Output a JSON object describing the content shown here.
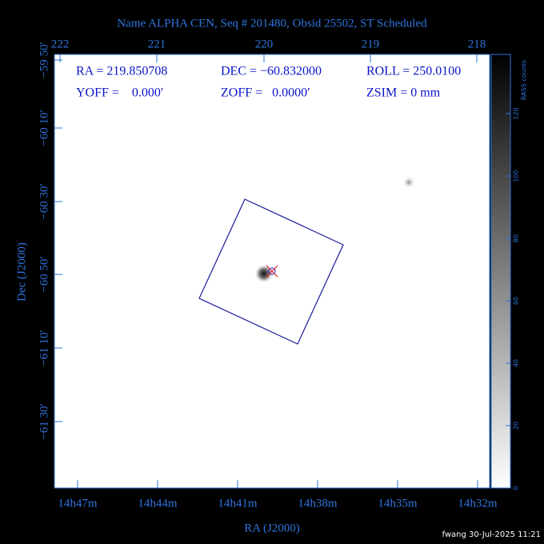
{
  "title": "Name ALPHA CEN, Seq # 201480, Obsid 25502, ST Scheduled",
  "info": {
    "row1": [
      "RA = 219.850708",
      "DEC = −60.832000",
      "ROLL = 250.0100"
    ],
    "row2": [
      "YOFF =    0.000′",
      "ZOFF =   0.0000′",
      "ZSIM = 0 mm"
    ]
  },
  "top_axis": {
    "labels": [
      "222",
      "221",
      "220",
      "219",
      "218"
    ]
  },
  "left_axis": {
    "labels": [
      "−59 50′",
      "−60 10′",
      "−60 30′",
      "−60 50′",
      "−61 10′",
      "−61 30′"
    ]
  },
  "bottom_axis": {
    "labels": [
      "14h47m",
      "14h44m",
      "14h41m",
      "14h38m",
      "14h35m",
      "14h32m"
    ]
  },
  "x_label": "RA (J2000)",
  "y_label": "Dec (J2000)",
  "colorbar": {
    "label": "RASS counts",
    "ticks": [
      0,
      20,
      40,
      60,
      80,
      100,
      120
    ]
  },
  "footer": "fwang 30-Jul-2025 11:21"
}
